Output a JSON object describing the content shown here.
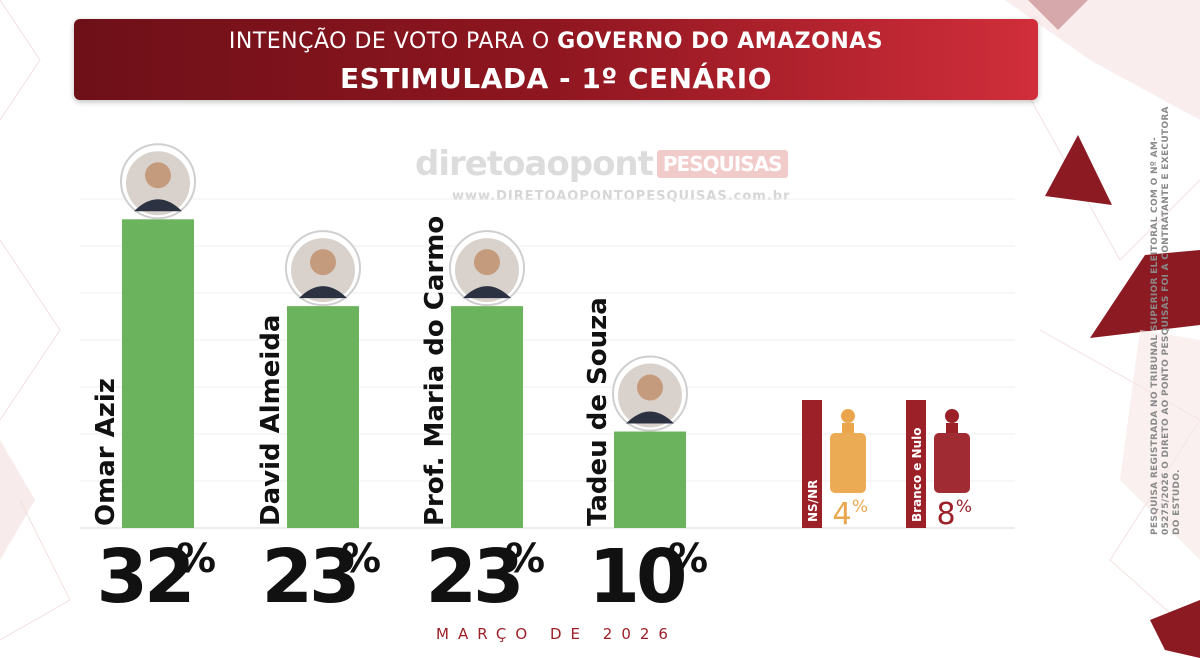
{
  "header": {
    "line1_prefix": "INTENÇÃO DE VOTO PARA O ",
    "line1_bold": "GOVERNO DO AMAZONAS",
    "line2": "ESTIMULADA - 1º CENÁRIO"
  },
  "watermark": {
    "logo_text": "diretoaopont",
    "logo_badge": "PESQUISAS",
    "url": "www.DIRETOAOPONTOPESQUISAS.com.br"
  },
  "sidebar_note": "PESQUISA REGISTRADA NO TRIBUNAL SUPERIOR ELEITORAL COM O Nº AM-05275/2026 O DIRETO AO PONTO PESQUISAS FOI A CONTRATANTE E EXECUTORA DO ESTUDO.",
  "footer": {
    "date": "MARÇO DE 2026"
  },
  "colors": {
    "bar": "#6bb35d",
    "accent": "#9b2027",
    "nsnr": "#eaa64c",
    "branco": "#9b2027"
  },
  "chart_data": {
    "type": "bar",
    "categories": [
      "Omar Aziz",
      "David Almeida",
      "Prof. Maria do Carmo",
      "Tadeu de Souza"
    ],
    "values": [
      32,
      23,
      23,
      10
    ],
    "value_labels": [
      "32",
      "23",
      "23",
      "10"
    ],
    "unit": "%",
    "extra": [
      {
        "label": "NS/NR",
        "value": 4,
        "value_label": "4",
        "color": "#eaa64c"
      },
      {
        "label": "Branco e Nulo",
        "value": 8,
        "value_label": "8",
        "color": "#9b2027"
      }
    ],
    "ylim": [
      0,
      34
    ],
    "grid": true
  }
}
